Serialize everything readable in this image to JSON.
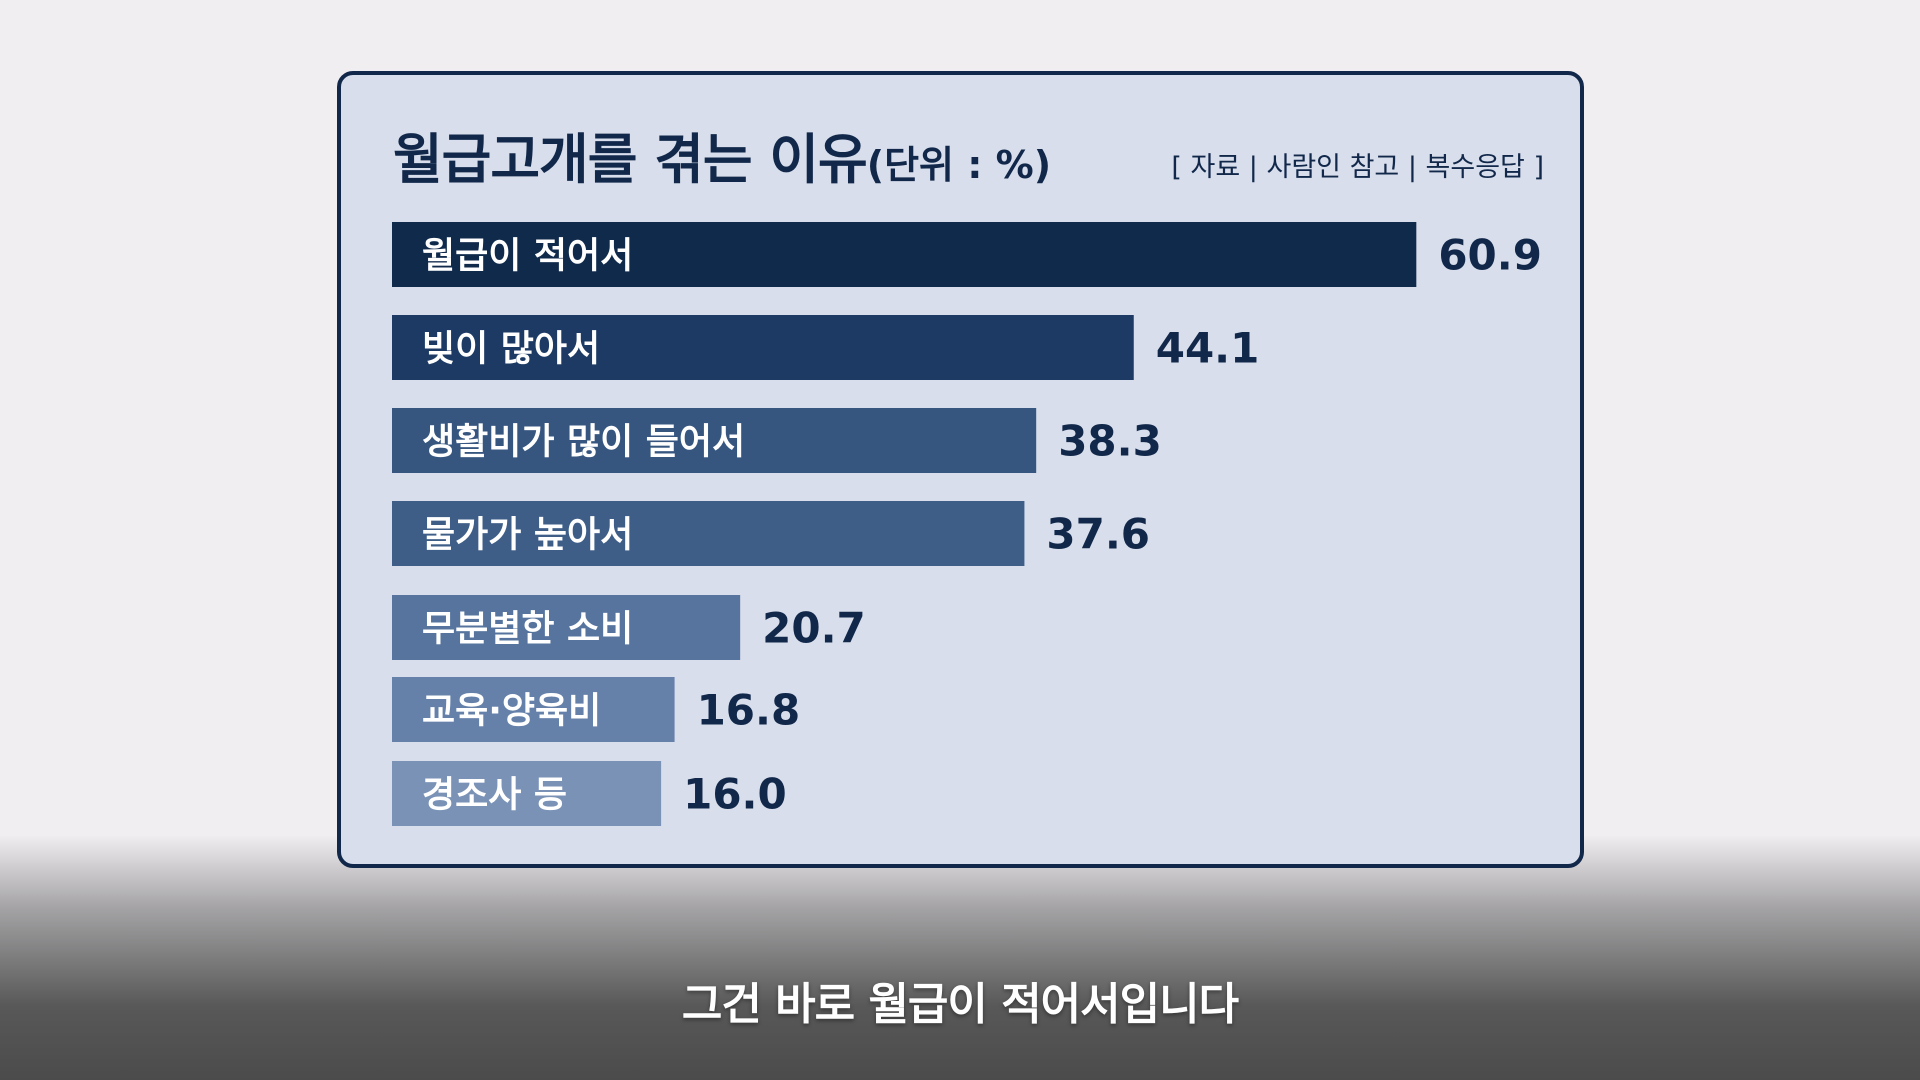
{
  "title": "월급고개를 겪는 이유",
  "unit_label": "(단위 : %)",
  "source_label": "[ 자료 | 사람인 참고 | 복수응답 ]",
  "subtitle": "그건 바로 월급이 적어서입니다",
  "chart_data": {
    "type": "bar",
    "orientation": "horizontal",
    "categories": [
      "월급이 적어서",
      "빚이 많아서",
      "생활비가 많이 들어서",
      "물가가 높아서",
      "무분별한 소비",
      "교육·양육비",
      "경조사 등"
    ],
    "values": [
      60.9,
      44.1,
      38.3,
      37.6,
      20.7,
      16.8,
      16.0
    ],
    "value_labels": [
      "60.9",
      "44.1",
      "38.3",
      "37.6",
      "20.7",
      "16.8",
      "16.0"
    ],
    "bar_colors": [
      "#102a4c",
      "#1c3a64",
      "#365680",
      "#3e5e88",
      "#56749e",
      "#6581aa",
      "#7a92b6"
    ],
    "label_color": "#ffffff",
    "value_color": "#12284a",
    "xlim": [
      0,
      61
    ]
  }
}
